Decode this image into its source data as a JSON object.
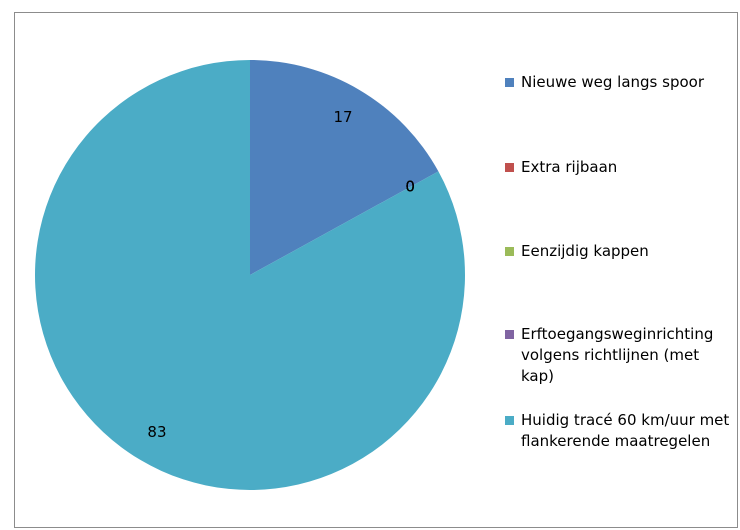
{
  "chart_data": {
    "type": "pie",
    "categories": [
      "Nieuwe weg langs spoor",
      "Extra rijbaan",
      "Eenzijdig kappen",
      "Erftoegangsweginrichting volgens richtlijnen (met kap)",
      "Huidig tracé 60 km/uur met flankerende maatregelen"
    ],
    "values": [
      17,
      0,
      0,
      0,
      83
    ],
    "colors": [
      "#4f81bd",
      "#c0504d",
      "#9bbb59",
      "#8064a2",
      "#4bacc6"
    ],
    "legend": "right"
  }
}
